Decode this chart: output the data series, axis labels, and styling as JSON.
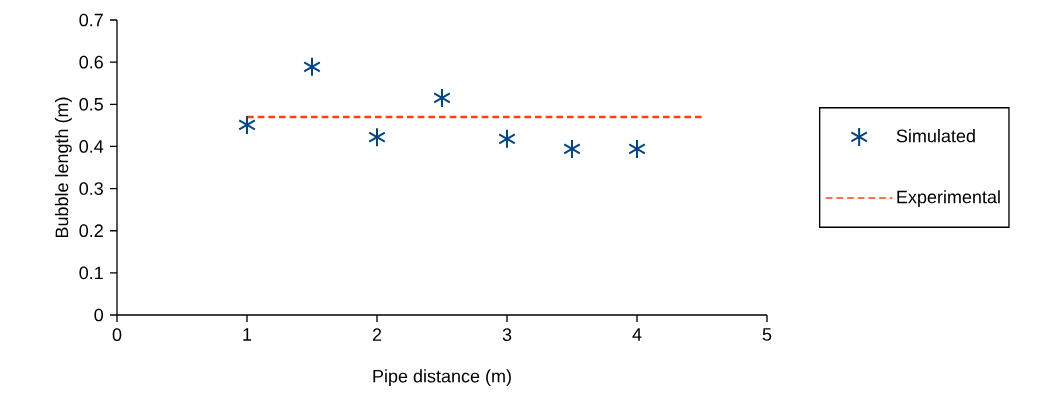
{
  "chart_data": {
    "type": "scatter",
    "xlabel": "Pipe distance (m)",
    "ylabel": "Bubble length (m)",
    "xlim": [
      0,
      5
    ],
    "xticks": [
      0,
      1,
      2,
      3,
      4,
      5
    ],
    "ylim": [
      0,
      0.7
    ],
    "yticks": [
      0,
      0.1,
      0.2,
      0.3,
      0.4,
      0.5,
      0.6,
      0.7
    ],
    "grid": false,
    "legend": "right",
    "marker": "cross",
    "series": [
      {
        "name": "Simulated",
        "color": "#004586",
        "x": [
          1,
          1.5,
          2,
          2.5,
          3,
          3.5,
          4
        ],
        "values": [
          0.451,
          0.589,
          0.422,
          0.515,
          0.418,
          0.394,
          0.394
        ]
      },
      {
        "name": "Experimental",
        "type": "line",
        "color": "#ff420e",
        "line_style": "dashed",
        "marker": "none",
        "x": [
          1,
          4.5
        ],
        "values": [
          0.47,
          0.47
        ]
      }
    ]
  }
}
